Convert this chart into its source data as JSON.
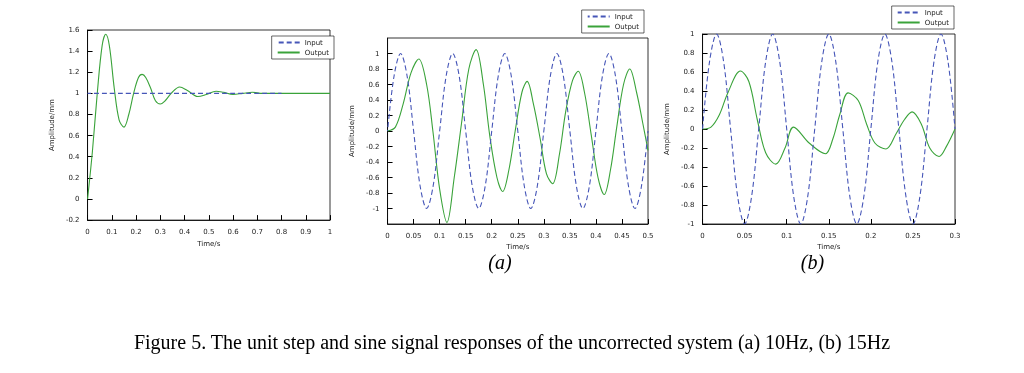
{
  "chart_data": [
    {
      "type": "line",
      "xlabel": "Time/s",
      "ylabel": "Amplitude/mm",
      "xlim": [
        0,
        1
      ],
      "ylim": [
        -0.2,
        1.6
      ],
      "xticks": [
        0,
        0.1,
        0.2,
        0.3,
        0.4,
        0.5,
        0.6,
        0.7,
        0.8,
        0.9,
        1
      ],
      "yticks": [
        -0.2,
        0,
        0.2,
        0.4,
        0.6,
        0.8,
        1,
        1.2,
        1.4,
        1.6
      ],
      "grid": false,
      "legend": "top right",
      "marker": "none",
      "series": [
        {
          "name": "Input",
          "color": "#4656b8",
          "line_style": "dashed",
          "x": [
            0,
            0.8
          ],
          "values": [
            1,
            1
          ]
        },
        {
          "name": "Output",
          "color": "#3aa33a",
          "line_style": "solid",
          "x": [
            0,
            0.02,
            0.04,
            0.06,
            0.075,
            0.09,
            0.11,
            0.13,
            0.15,
            0.17,
            0.19,
            0.21,
            0.225,
            0.24,
            0.26,
            0.28,
            0.3,
            0.32,
            0.345,
            0.38,
            0.41,
            0.455,
            0.49,
            0.53,
            0.56,
            0.6,
            0.64,
            0.68,
            0.72,
            0.8,
            1
          ],
          "values": [
            0,
            0.45,
            1.0,
            1.45,
            1.56,
            1.45,
            1.05,
            0.75,
            0.68,
            0.8,
            1.0,
            1.15,
            1.18,
            1.15,
            1.05,
            0.93,
            0.9,
            0.93,
            1.0,
            1.06,
            1.03,
            0.97,
            0.99,
            1.02,
            1.01,
            0.99,
            1.0,
            1.01,
            1.0,
            1.0,
            1.0
          ]
        }
      ]
    },
    {
      "type": "line",
      "xlabel": "Time/s",
      "ylabel": "Amplitude/mm",
      "annotations": [
        "(a)"
      ],
      "xlim": [
        0,
        0.5
      ],
      "ylim": [
        -1.2,
        1.2
      ],
      "xticks": [
        0,
        0.05,
        0.1,
        0.15,
        0.2,
        0.25,
        0.3,
        0.35,
        0.4,
        0.45,
        0.5
      ],
      "yticks": [
        -1,
        -0.8,
        -0.6,
        -0.4,
        -0.2,
        0,
        0.2,
        0.4,
        0.6,
        0.8,
        1
      ],
      "grid": false,
      "legend": "top right",
      "marker": "none",
      "series": [
        {
          "name": "Input",
          "color": "#4656b8",
          "line_style": "dashed",
          "x": [
            0,
            0.0125,
            0.025,
            0.0375,
            0.05,
            0.0625,
            0.075,
            0.0875,
            0.1,
            0.1125,
            0.125,
            0.1375,
            0.15,
            0.1625,
            0.175,
            0.1875,
            0.2,
            0.2125,
            0.225,
            0.2375,
            0.25,
            0.2625,
            0.275,
            0.2875,
            0.3,
            0.3125,
            0.325,
            0.3375,
            0.35,
            0.3625,
            0.375,
            0.3875,
            0.4,
            0.4125,
            0.425,
            0.4375,
            0.45,
            0.4625,
            0.475,
            0.4875,
            0.5
          ],
          "values": [
            0,
            0.71,
            1,
            0.71,
            0,
            -0.71,
            -1,
            -0.71,
            0,
            0.71,
            1,
            0.71,
            0,
            -0.71,
            -1,
            -0.71,
            0,
            0.71,
            1,
            0.71,
            0,
            -0.71,
            -1,
            -0.71,
            0,
            0.71,
            1,
            0.71,
            0,
            -0.71,
            -1,
            -0.71,
            0,
            0.71,
            1,
            0.71,
            0,
            -0.71,
            -1,
            -0.71,
            0
          ]
        },
        {
          "name": "Output",
          "color": "#3aa33a",
          "line_style": "solid",
          "x": [
            0,
            0.015,
            0.03,
            0.045,
            0.06,
            0.075,
            0.087,
            0.1,
            0.114,
            0.128,
            0.142,
            0.156,
            0.17,
            0.184,
            0.196,
            0.21,
            0.221,
            0.233,
            0.245,
            0.258,
            0.268,
            0.28,
            0.293,
            0.305,
            0.317,
            0.33,
            0.342,
            0.355,
            0.366,
            0.378,
            0.391,
            0.404,
            0.416,
            0.428,
            0.44,
            0.453,
            0.465,
            0.478,
            0.49,
            0.5
          ],
          "values": [
            0,
            0.05,
            0.35,
            0.75,
            0.93,
            0.6,
            0,
            -0.75,
            -1.18,
            -0.6,
            0.1,
            0.8,
            1.05,
            0.6,
            -0.05,
            -0.6,
            -0.78,
            -0.5,
            0,
            0.5,
            0.64,
            0.35,
            -0.1,
            -0.55,
            -0.68,
            -0.3,
            0.25,
            0.65,
            0.77,
            0.5,
            -0.05,
            -0.6,
            -0.82,
            -0.5,
            0.05,
            0.6,
            0.8,
            0.5,
            0.1,
            -0.25
          ]
        }
      ]
    },
    {
      "type": "line",
      "xlabel": "Time/s",
      "ylabel": "Amplitude/mm",
      "annotations": [
        "(b)"
      ],
      "xlim": [
        0,
        0.3
      ],
      "ylim": [
        -1,
        1
      ],
      "xticks": [
        0,
        0.05,
        0.1,
        0.15,
        0.2,
        0.25,
        0.3
      ],
      "yticks": [
        -1,
        -0.8,
        -0.6,
        -0.4,
        -0.2,
        0,
        0.2,
        0.4,
        0.6,
        0.8,
        1
      ],
      "grid": false,
      "legend": "top right",
      "marker": "none",
      "series": [
        {
          "name": "Input",
          "color": "#4656b8",
          "line_style": "dashed",
          "x": [
            0,
            0.0083,
            0.0167,
            0.025,
            0.0333,
            0.0417,
            0.05,
            0.0583,
            0.0667,
            0.075,
            0.0833,
            0.0917,
            0.1,
            0.1083,
            0.1167,
            0.125,
            0.1333,
            0.1417,
            0.15,
            0.1583,
            0.1667,
            0.175,
            0.1833,
            0.1917,
            0.2,
            0.2083,
            0.2167,
            0.225,
            0.2333,
            0.2417,
            0.25,
            0.2583,
            0.2667,
            0.275,
            0.2833,
            0.2917,
            0.3
          ],
          "values": [
            0,
            0.71,
            1,
            0.71,
            0,
            -0.71,
            -1,
            -0.71,
            0,
            0.71,
            1,
            0.71,
            0,
            -0.71,
            -1,
            -0.71,
            0,
            0.71,
            1,
            0.71,
            0,
            -0.71,
            -1,
            -0.71,
            0,
            0.71,
            1,
            0.71,
            0,
            -0.71,
            -1,
            -0.71,
            0,
            0.71,
            1,
            0.71,
            0
          ]
        },
        {
          "name": "Output",
          "color": "#3aa33a",
          "line_style": "solid",
          "x": [
            0,
            0.01,
            0.02,
            0.03,
            0.045,
            0.055,
            0.065,
            0.075,
            0.087,
            0.098,
            0.108,
            0.127,
            0.146,
            0.155,
            0.163,
            0.173,
            0.185,
            0.195,
            0.205,
            0.218,
            0.23,
            0.24,
            0.249,
            0.26,
            0.27,
            0.281,
            0.29,
            0.3
          ],
          "values": [
            0,
            0.02,
            0.15,
            0.38,
            0.61,
            0.5,
            0.1,
            -0.25,
            -0.37,
            -0.2,
            0.02,
            -0.15,
            -0.26,
            -0.1,
            0.15,
            0.38,
            0.3,
            0.05,
            -0.15,
            -0.21,
            -0.05,
            0.1,
            0.18,
            0.05,
            -0.2,
            -0.29,
            -0.18,
            0
          ]
        }
      ]
    },
    {
      "type": "other",
      "annotations": [
        "Figure 5. The unit step and sine signal responses of the uncorrected system (a) 10Hz, (b) 15Hz"
      ]
    }
  ]
}
